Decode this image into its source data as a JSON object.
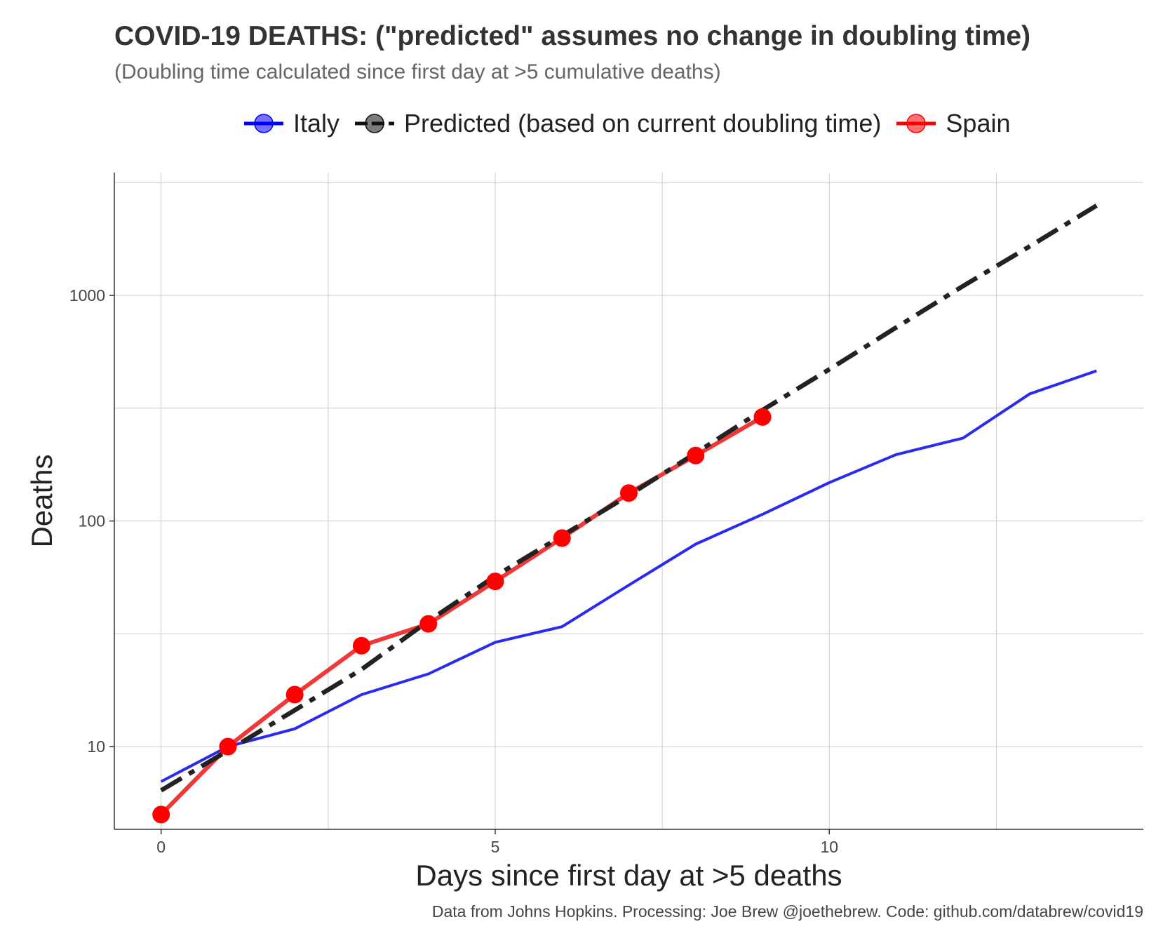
{
  "chart_data": {
    "type": "line",
    "title": "COVID-19 DEATHS: (\"predicted\" assumes no change in doubling time)",
    "subtitle": "(Doubling time calculated since first day at >5 cumulative deaths)",
    "xlabel": "Days since first day at >5 deaths",
    "ylabel": "Deaths",
    "caption": "Data from Johns Hopkins. Processing: Joe Brew @joethebrew. Code: github.com/databrew/covid19",
    "x_ticks": [
      0,
      5,
      10
    ],
    "y_ticks": [
      10,
      100,
      1000
    ],
    "y_scale": "log",
    "xlim": [
      -0.7,
      14.7
    ],
    "ylim": [
      4.3,
      3500
    ],
    "grid": true,
    "legend_position": "top",
    "series": [
      {
        "name": "Italy",
        "color": "#2b2bf0",
        "style": "solid",
        "markers": false,
        "x": [
          0,
          1,
          2,
          3,
          4,
          5,
          6,
          7,
          8,
          9,
          10,
          11,
          12,
          13,
          14
        ],
        "y": [
          7,
          10,
          12,
          17,
          21,
          29,
          34,
          52,
          79,
          107,
          148,
          197,
          233,
          366,
          463
        ]
      },
      {
        "name": "Predicted (based on current doubling time)",
        "color": "#222222",
        "style": "dashdot",
        "markers": false,
        "x": [
          0,
          1,
          2,
          3,
          4,
          5,
          6,
          7,
          8,
          9,
          10,
          11,
          12,
          13,
          14
        ],
        "y": [
          6.4,
          9.6,
          14.5,
          22,
          36,
          57,
          86,
          130,
          200,
          310,
          470,
          720,
          1100,
          1650,
          2500
        ]
      },
      {
        "name": "Spain",
        "color": "#ee2222",
        "style": "solid",
        "markers": true,
        "x": [
          0,
          1,
          2,
          3,
          4,
          5,
          6,
          7,
          8,
          9
        ],
        "y": [
          5,
          10,
          17,
          28,
          35,
          54,
          84,
          133,
          195,
          289
        ]
      }
    ]
  }
}
